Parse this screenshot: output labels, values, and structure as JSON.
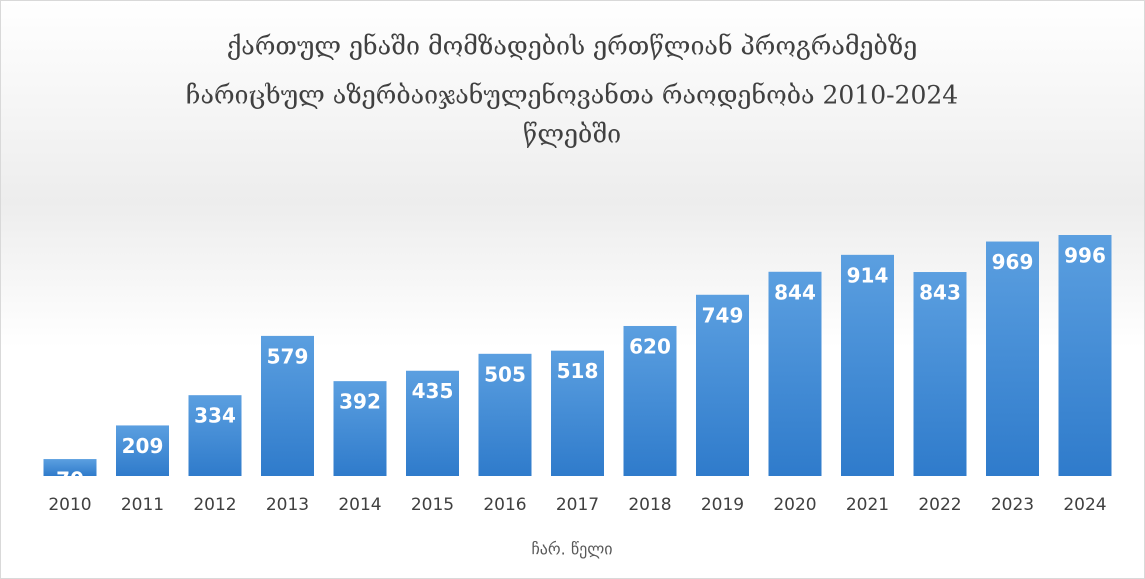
{
  "chart_data": {
    "type": "bar",
    "title": [
      "ქართულ ენაში მომზადების ერთწლიან პროგრამებზე",
      "ჩარიცხულ აზერბაიჯანულენოვანთა რაოდენობა  2010-2024",
      "წლებში"
    ],
    "x_label": "ჩარ. წელი",
    "categories": [
      "2010",
      "2011",
      "2012",
      "2013",
      "2014",
      "2015",
      "2016",
      "2017",
      "2018",
      "2019",
      "2020",
      "2021",
      "2022",
      "2023",
      "2024"
    ],
    "values": [
      70,
      209,
      334,
      579,
      392,
      435,
      505,
      518,
      620,
      749,
      844,
      914,
      843,
      969,
      996
    ],
    "color": "#4a8fd6",
    "grid": false
  }
}
